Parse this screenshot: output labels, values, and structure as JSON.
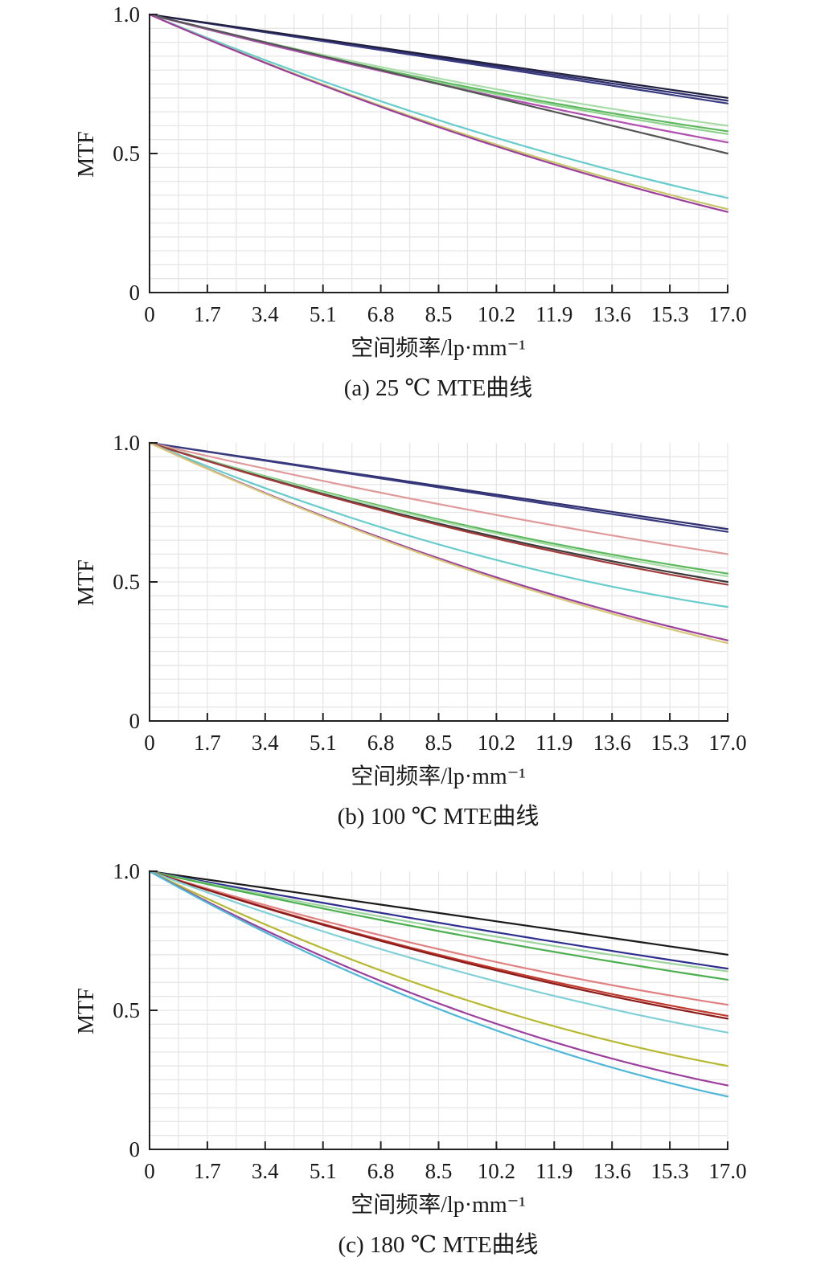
{
  "chart_data": [
    {
      "type": "line",
      "caption": "(a) 25 ℃ MTE曲线",
      "xlabel": "空间频率/lp·mm⁻¹",
      "ylabel": "MTF",
      "x_ticks": [
        "0",
        "1.7",
        "3.4",
        "5.1",
        "6.8",
        "8.5",
        "10.2",
        "11.9",
        "13.6",
        "15.3",
        "17.0"
      ],
      "y_ticks": [
        "0",
        "0.5",
        "1.0"
      ],
      "xlim": [
        0,
        17.0
      ],
      "ylim": [
        0,
        1.0
      ],
      "grid": true,
      "series": [
        {
          "color": "#2e2e6e",
          "x": [
            0,
            17.0
          ],
          "y": [
            1.0,
            0.69
          ],
          "curve": 0.0
        },
        {
          "color": "#3a3a80",
          "x": [
            0,
            17.0
          ],
          "y": [
            1.0,
            0.68
          ],
          "curve": 0.0
        },
        {
          "color": "#1f1f3d",
          "x": [
            0,
            17.0
          ],
          "y": [
            1.0,
            0.7
          ],
          "curve": 0.0
        },
        {
          "color": "#5cb85c",
          "x": [
            0,
            17.0
          ],
          "y": [
            1.0,
            0.58
          ],
          "curve": 0.03
        },
        {
          "color": "#8fd18f",
          "x": [
            0,
            17.0
          ],
          "y": [
            1.0,
            0.57
          ],
          "curve": 0.03
        },
        {
          "color": "#a8dca8",
          "x": [
            0,
            17.0
          ],
          "y": [
            1.0,
            0.6
          ],
          "curve": 0.03
        },
        {
          "color": "#b04fb0",
          "x": [
            0,
            17.0
          ],
          "y": [
            1.0,
            0.54
          ],
          "curve": 0.02
        },
        {
          "color": "#555555",
          "x": [
            0,
            17.0
          ],
          "y": [
            1.0,
            0.5
          ],
          "curve": 0.0
        },
        {
          "color": "#66cccc",
          "x": [
            0,
            17.0
          ],
          "y": [
            1.0,
            0.34
          ],
          "curve": 0.05
        },
        {
          "color": "#c6c66a",
          "x": [
            0,
            17.0
          ],
          "y": [
            1.0,
            0.3
          ],
          "curve": 0.05
        },
        {
          "color": "#9c3f9c",
          "x": [
            0,
            17.0
          ],
          "y": [
            1.0,
            0.29
          ],
          "curve": 0.05
        }
      ]
    },
    {
      "type": "line",
      "caption": "(b) 100 ℃ MTE曲线",
      "xlabel": "空间频率/lp·mm⁻¹",
      "ylabel": "MTF",
      "x_ticks": [
        "0",
        "1.7",
        "3.4",
        "5.1",
        "6.8",
        "8.5",
        "10.2",
        "11.9",
        "13.6",
        "15.3",
        "17.0"
      ],
      "y_ticks": [
        "0",
        "0.5",
        "1.0"
      ],
      "xlim": [
        0,
        17.0
      ],
      "ylim": [
        0,
        1.0
      ],
      "grid": true,
      "series": [
        {
          "color": "#2e2e6e",
          "x": [
            0,
            17.0
          ],
          "y": [
            1.0,
            0.69
          ],
          "curve": 0.0
        },
        {
          "color": "#3a3a80",
          "x": [
            0,
            17.0
          ],
          "y": [
            1.0,
            0.68
          ],
          "curve": 0.0
        },
        {
          "color": "#e09a9a",
          "x": [
            0,
            17.0
          ],
          "y": [
            1.0,
            0.6
          ],
          "curve": 0.02
        },
        {
          "color": "#5cb85c",
          "x": [
            0,
            17.0
          ],
          "y": [
            1.0,
            0.53
          ],
          "curve": 0.04
        },
        {
          "color": "#a8dca8",
          "x": [
            0,
            17.0
          ],
          "y": [
            1.0,
            0.52
          ],
          "curve": 0.04
        },
        {
          "color": "#3c3c3c",
          "x": [
            0,
            17.0
          ],
          "y": [
            1.0,
            0.5
          ],
          "curve": 0.04
        },
        {
          "color": "#a33a3a",
          "x": [
            0,
            17.0
          ],
          "y": [
            1.0,
            0.49
          ],
          "curve": 0.04
        },
        {
          "color": "#66cccc",
          "x": [
            0,
            17.0
          ],
          "y": [
            1.0,
            0.41
          ],
          "curve": 0.07
        },
        {
          "color": "#9c3f9c",
          "x": [
            0,
            17.0
          ],
          "y": [
            1.0,
            0.29
          ],
          "curve": 0.06
        },
        {
          "color": "#d6c87a",
          "x": [
            0,
            17.0
          ],
          "y": [
            1.0,
            0.28
          ],
          "curve": 0.06
        }
      ]
    },
    {
      "type": "line",
      "caption": "(c) 180 ℃ MTE曲线",
      "xlabel": "空间频率/lp·mm⁻¹",
      "ylabel": "MTF",
      "x_ticks": [
        "0",
        "1.7",
        "3.4",
        "5.1",
        "6.8",
        "8.5",
        "10.2",
        "11.9",
        "13.6",
        "15.3",
        "17.0"
      ],
      "y_ticks": [
        "0",
        "0.5",
        "1.0"
      ],
      "xlim": [
        0,
        17.0
      ],
      "ylim": [
        0,
        1.0
      ],
      "grid": true,
      "series": [
        {
          "color": "#1a1a1a",
          "x": [
            0,
            17.0
          ],
          "y": [
            1.0,
            0.7
          ],
          "curve": 0.0
        },
        {
          "color": "#2e2e8e",
          "x": [
            0,
            17.0
          ],
          "y": [
            1.0,
            0.65
          ],
          "curve": 0.01
        },
        {
          "color": "#9fd69f",
          "x": [
            0,
            17.0
          ],
          "y": [
            1.0,
            0.64
          ],
          "curve": 0.02
        },
        {
          "color": "#4caf50",
          "x": [
            0,
            17.0
          ],
          "y": [
            1.0,
            0.61
          ],
          "curve": 0.02
        },
        {
          "color": "#e08080",
          "x": [
            0,
            17.0
          ],
          "y": [
            1.0,
            0.52
          ],
          "curve": 0.04
        },
        {
          "color": "#c0392b",
          "x": [
            0,
            17.0
          ],
          "y": [
            1.0,
            0.48
          ],
          "curve": 0.04
        },
        {
          "color": "#8b1a1a",
          "x": [
            0,
            17.0
          ],
          "y": [
            1.0,
            0.47
          ],
          "curve": 0.04
        },
        {
          "color": "#80d0d8",
          "x": [
            0,
            17.0
          ],
          "y": [
            1.0,
            0.42
          ],
          "curve": 0.05
        },
        {
          "color": "#b8b830",
          "x": [
            0,
            17.0
          ],
          "y": [
            1.0,
            0.3
          ],
          "curve": 0.08
        },
        {
          "color": "#9c3f9c",
          "x": [
            0,
            17.0
          ],
          "y": [
            1.0,
            0.23
          ],
          "curve": 0.09
        },
        {
          "color": "#4fb8d8",
          "x": [
            0,
            17.0
          ],
          "y": [
            1.0,
            0.19
          ],
          "curve": 0.09
        }
      ]
    }
  ]
}
